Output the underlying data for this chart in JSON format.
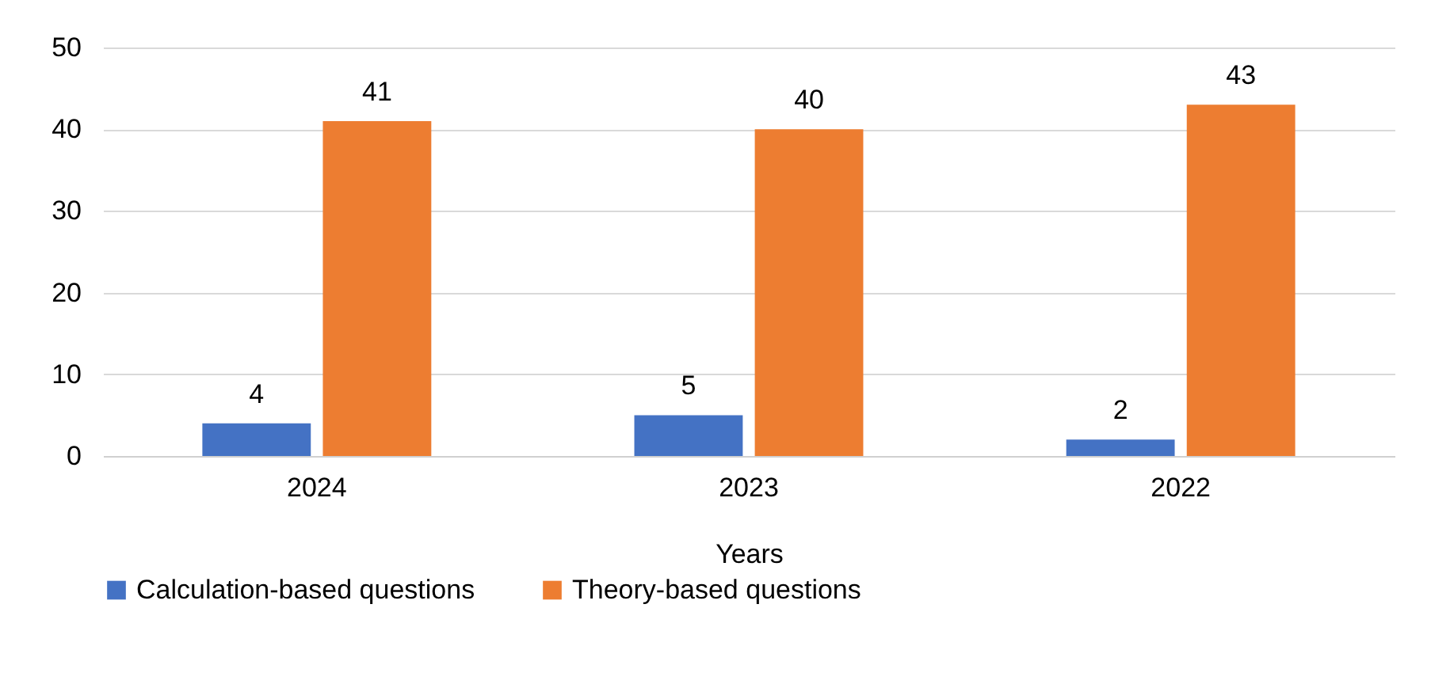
{
  "chart_data": {
    "type": "bar",
    "xlabel": "Years",
    "categories": [
      "2024",
      "2023",
      "2022"
    ],
    "series": [
      {
        "name": "Calculation-based questions",
        "color": "#4472c4",
        "values": [
          4,
          5,
          2
        ]
      },
      {
        "name": "Theory-based questions",
        "color": "#ed7d31",
        "values": [
          41,
          40,
          43
        ]
      }
    ],
    "ylim": [
      0,
      50
    ],
    "yticks": [
      0,
      10,
      20,
      30,
      40,
      50
    ],
    "grid": "y",
    "legend": "bottom",
    "data_labels": true
  }
}
